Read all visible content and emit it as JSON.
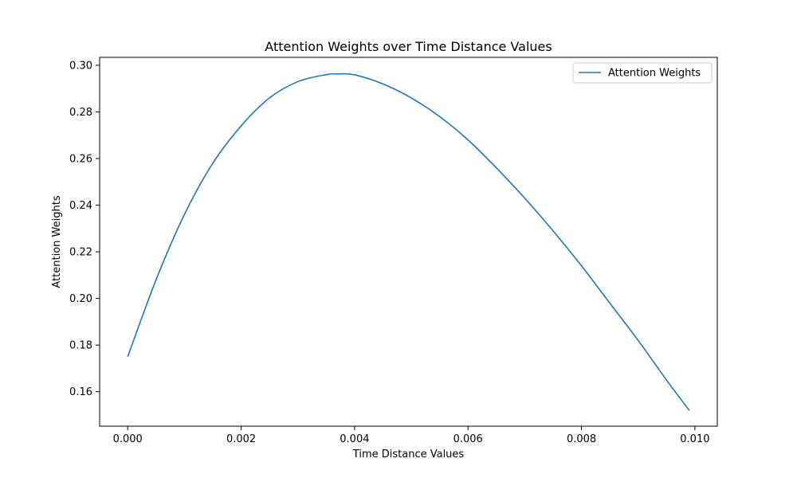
{
  "chart_data": {
    "type": "line",
    "title": "Attention Weights over Time Distance Values",
    "xlabel": "Time Distance Values",
    "ylabel": "Attention Weights",
    "xlim": [
      -0.000495,
      0.010395
    ],
    "ylim": [
      0.1452,
      0.3034
    ],
    "xticks": [
      "0.000",
      "0.002",
      "0.004",
      "0.006",
      "0.008",
      "0.010"
    ],
    "yticks": [
      "0.16",
      "0.18",
      "0.20",
      "0.22",
      "0.24",
      "0.26",
      "0.28",
      "0.30"
    ],
    "grid": false,
    "legend_position": "top-right",
    "series": [
      {
        "name": "Attention Weights",
        "color": "#1f77b4",
        "x": [
          0.0,
          0.0005,
          0.001,
          0.0015,
          0.002,
          0.0025,
          0.003,
          0.0035,
          0.0037,
          0.004,
          0.0045,
          0.005,
          0.0055,
          0.006,
          0.0065,
          0.007,
          0.0075,
          0.008,
          0.0085,
          0.009,
          0.0095,
          0.0099
        ],
        "y": [
          0.175,
          0.208,
          0.236,
          0.258,
          0.274,
          0.286,
          0.293,
          0.296,
          0.2963,
          0.2959,
          0.292,
          0.286,
          0.278,
          0.268,
          0.256,
          0.243,
          0.229,
          0.214,
          0.198,
          0.182,
          0.165,
          0.152
        ]
      }
    ]
  }
}
